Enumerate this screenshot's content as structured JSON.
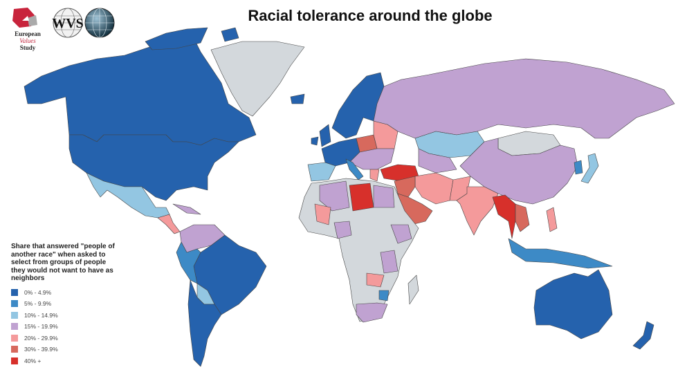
{
  "title": "Racial tolerance around the globe",
  "logos": {
    "evs": {
      "line1": "European",
      "line2": "Values",
      "line3": "Study"
    },
    "wvs": {
      "text": "WVS"
    }
  },
  "legend": {
    "title": "Share that answered \"people of another race\" when asked to select from groups of people they would not want to have as neighbors",
    "items": [
      {
        "label": "0% - 4.9%",
        "color": "#2562ad"
      },
      {
        "label": "5% - 9.9%",
        "color": "#3d8ac6"
      },
      {
        "label": "10% - 14.9%",
        "color": "#93c6e2"
      },
      {
        "label": "15% - 19.9%",
        "color": "#c0a2d1"
      },
      {
        "label": "20% - 29.9%",
        "color": "#f49a9b"
      },
      {
        "label": "30% - 39.9%",
        "color": "#d7695d"
      },
      {
        "label": "40% +",
        "color": "#d7302b"
      }
    ],
    "no_data_color": "#d3d8dc"
  }
}
